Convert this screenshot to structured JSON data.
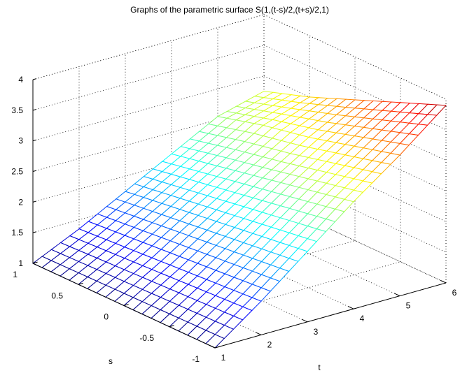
{
  "chart_data": {
    "type": "surface3d",
    "title": "Graphs of the parametric surface S(1,(t-s)/2,(t+s)/2,1)",
    "xlabel": "t",
    "ylabel": "s",
    "zlabel": "",
    "xlim": [
      1,
      6
    ],
    "ylim": [
      -1,
      1
    ],
    "zlim": [
      1,
      4
    ],
    "x_ticks": [
      "1",
      "2",
      "3",
      "4",
      "5",
      "6"
    ],
    "y_ticks": [
      "-1",
      "-0.5",
      "0",
      "0.5",
      "1"
    ],
    "z_ticks": [
      "1",
      "1.5",
      "2",
      "2.5",
      "3",
      "3.5",
      "4"
    ],
    "grid": true,
    "colormap": "jet",
    "mesh": {
      "t_count": 26,
      "s_count": 21
    },
    "surface_samples": {
      "t_values": [
        1,
        2,
        3,
        4,
        5,
        6
      ],
      "s_values": [
        -1,
        -0.5,
        0,
        0.5,
        1
      ],
      "z_values": [
        [
          1.0,
          1.0,
          1.0,
          1.0,
          1.0
        ],
        [
          1.55,
          1.5,
          1.45,
          1.4,
          1.35
        ],
        [
          2.15,
          2.05,
          1.95,
          1.85,
          1.75
        ],
        [
          2.75,
          2.6,
          2.45,
          2.3,
          2.15
        ],
        [
          3.3,
          3.1,
          2.9,
          2.75,
          2.55
        ],
        [
          3.9,
          3.6,
          3.3,
          3.0,
          2.75
        ]
      ]
    }
  }
}
